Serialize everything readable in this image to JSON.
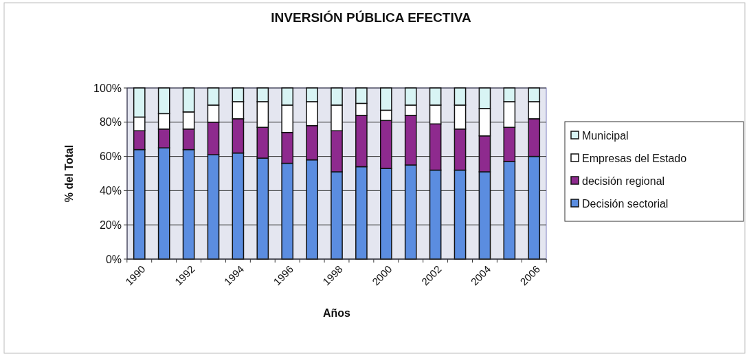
{
  "chart_data": {
    "type": "bar",
    "stacked": true,
    "title": "INVERSIÓN PÚBLICA EFECTIVA",
    "xlabel": "Años",
    "ylabel": "% del Total",
    "categories": [
      "1990",
      null,
      "1992",
      null,
      "1994",
      null,
      "1996",
      null,
      "1998",
      null,
      "2000",
      null,
      "2002",
      null,
      "2004",
      null,
      "2006"
    ],
    "series": [
      {
        "name": "Decisión sectorial",
        "color": "#5b8de0",
        "values": [
          64,
          65,
          64,
          61,
          62,
          59,
          56,
          58,
          51,
          54,
          53,
          55,
          52,
          52,
          51,
          57,
          60
        ]
      },
      {
        "name": "decisión regional",
        "color": "#8e2a8e",
        "values": [
          11,
          11,
          12,
          19,
          20,
          18,
          18,
          20,
          24,
          30,
          28,
          29,
          27,
          24,
          21,
          20,
          22
        ]
      },
      {
        "name": "Empresas del Estado",
        "color": "#ffffff",
        "values": [
          8,
          9,
          10,
          10,
          10,
          15,
          16,
          14,
          15,
          7,
          6,
          6,
          11,
          14,
          16,
          15,
          10
        ]
      },
      {
        "name": "Municipal",
        "color": "#d8f4f4",
        "values": [
          17,
          15,
          14,
          10,
          8,
          8,
          10,
          8,
          10,
          9,
          13,
          10,
          10,
          10,
          12,
          8,
          8
        ]
      }
    ],
    "ylim": [
      0,
      100
    ],
    "yticks": [
      {
        "value": 0,
        "label": "0%"
      },
      {
        "value": 20,
        "label": "20%"
      },
      {
        "value": 40,
        "label": "40%"
      },
      {
        "value": 60,
        "label": "60%"
      },
      {
        "value": 80,
        "label": "80%"
      },
      {
        "value": 100,
        "label": "100%"
      }
    ],
    "grid": "y",
    "legend": "right"
  }
}
